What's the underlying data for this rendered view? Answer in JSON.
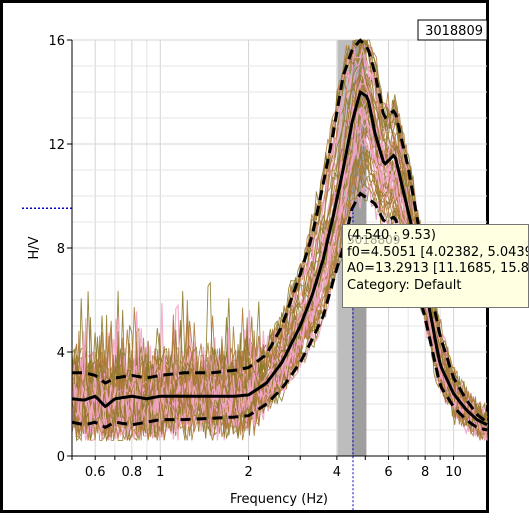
{
  "chart_data": {
    "type": "line",
    "title": "3018809",
    "xlabel": "Frequency (Hz)",
    "ylabel": "H/V",
    "xscale": "log",
    "xlim": [
      0.5,
      13
    ],
    "ylim": [
      0,
      16
    ],
    "x_ticks": [
      0.6,
      0.8,
      1,
      2,
      4,
      6,
      8,
      10
    ],
    "x_tick_labels": [
      "0.6",
      "0.8",
      "1",
      "2",
      "4",
      "6",
      "8",
      "10"
    ],
    "y_ticks": [
      0,
      4,
      8,
      12,
      16
    ],
    "y_tick_labels": [
      "0",
      "4",
      "8",
      "12",
      "16"
    ],
    "grid": true,
    "grid_style": "minor gridlines at each unit of the x axis and every 1 unit of y",
    "peak_band_x": [
      4.02382,
      5.0439
    ],
    "peak_band_inner_x": [
      4.5051,
      5.0439
    ],
    "crosshair": {
      "x": 4.54,
      "y": 9.53
    },
    "series": [
      {
        "role": "mean",
        "style": "solid-thick-black",
        "x": [
          0.5,
          0.55,
          0.6,
          0.65,
          0.7,
          0.8,
          0.9,
          1.0,
          1.2,
          1.5,
          1.8,
          2.0,
          2.3,
          2.6,
          3.0,
          3.3,
          3.6,
          3.9,
          4.2,
          4.5,
          4.8,
          5.1,
          5.4,
          5.8,
          6.3,
          7.0,
          7.5,
          8.0,
          9.0,
          10.0,
          11.0,
          12.0,
          13.0
        ],
        "y": [
          2.2,
          2.15,
          2.3,
          1.9,
          2.2,
          2.3,
          2.2,
          2.3,
          2.3,
          2.3,
          2.3,
          2.35,
          2.8,
          3.6,
          5.0,
          6.2,
          7.6,
          9.3,
          11.0,
          12.8,
          14.0,
          13.8,
          12.4,
          11.2,
          11.6,
          9.4,
          8.0,
          6.5,
          3.5,
          2.4,
          1.8,
          1.4,
          1.2
        ]
      },
      {
        "role": "mean-plus-std",
        "style": "dashed-thick-black",
        "x": [
          0.5,
          0.55,
          0.6,
          0.65,
          0.7,
          0.8,
          0.9,
          1.0,
          1.2,
          1.5,
          1.8,
          2.0,
          2.3,
          2.6,
          3.0,
          3.3,
          3.6,
          3.9,
          4.2,
          4.5,
          4.8,
          5.1,
          5.4,
          5.8,
          6.3,
          7.0,
          7.5,
          8.0,
          9.0,
          10.0,
          11.0,
          12.0,
          13.0
        ],
        "y": [
          3.2,
          3.2,
          3.1,
          2.8,
          3.0,
          3.1,
          3.0,
          3.1,
          3.2,
          3.2,
          3.3,
          3.4,
          3.9,
          5.0,
          7.0,
          8.5,
          10.5,
          12.5,
          14.6,
          15.6,
          16.0,
          15.7,
          14.7,
          13.0,
          13.3,
          11.1,
          9.2,
          7.4,
          4.6,
          3.0,
          2.2,
          1.6,
          1.3
        ]
      },
      {
        "role": "mean-minus-std",
        "style": "dashed-thick-black",
        "x": [
          0.5,
          0.55,
          0.6,
          0.65,
          0.7,
          0.8,
          0.9,
          1.0,
          1.2,
          1.5,
          1.8,
          2.0,
          2.3,
          2.6,
          3.0,
          3.3,
          3.6,
          3.9,
          4.2,
          4.5,
          4.8,
          5.1,
          5.4,
          5.8,
          6.3,
          7.0,
          7.5,
          8.0,
          9.0,
          10.0,
          11.0,
          12.0,
          13.0
        ],
        "y": [
          1.3,
          1.2,
          1.3,
          1.1,
          1.3,
          1.2,
          1.3,
          1.4,
          1.4,
          1.45,
          1.5,
          1.55,
          2.0,
          2.6,
          3.6,
          4.5,
          5.4,
          6.8,
          8.0,
          9.5,
          10.1,
          9.9,
          9.7,
          9.0,
          9.2,
          7.6,
          6.5,
          5.3,
          2.7,
          1.9,
          1.4,
          1.1,
          1.0
        ]
      }
    ],
    "individual_curves": {
      "count": 60,
      "colors": [
        "#f4a6c6",
        "#2f5e4e",
        "#8a7a2a",
        "#b07a3a"
      ]
    }
  },
  "tooltip": {
    "ghost": "3018809",
    "line1": "(4.540 ; 9.53)",
    "line2": "f0=4.5051 [4.02382, 5.0439",
    "line3": "A0=13.2913 [11.1685, 15.8",
    "line4": "Category: Default"
  },
  "colors": {
    "frame_border": "#000000",
    "grid": "#e4e4e4",
    "band_outer": "#bdbdbd",
    "band_inner": "#8a8a8a",
    "crosshair": "#0000cc",
    "tooltip_bg": "#ffffe1"
  }
}
